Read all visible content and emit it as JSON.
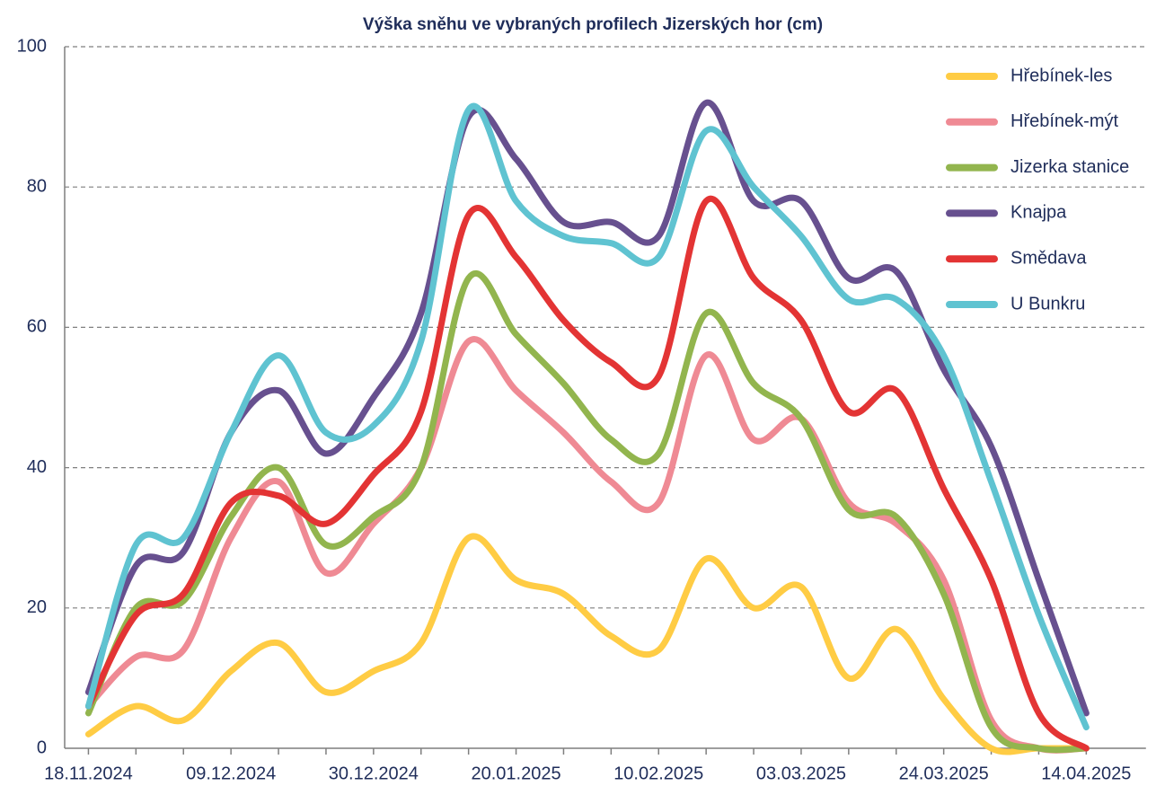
{
  "chart_data": {
    "type": "line",
    "title": "Výška sněhu ve vybraných profilech Jizerských hor (cm)",
    "categories": [
      "18.11.2024",
      null,
      null,
      "09.12.2024",
      null,
      null,
      "30.12.2024",
      null,
      null,
      "20.01.2025",
      null,
      null,
      "10.02.2025",
      null,
      null,
      "03.03.2025",
      null,
      null,
      "24.03.2025",
      null,
      null,
      "14.04.2025"
    ],
    "series": [
      {
        "name": "Hřebínek-les",
        "color": "#ffcc44",
        "values": [
          2,
          6,
          4,
          11,
          15,
          8,
          11,
          15,
          30,
          24,
          22,
          16,
          14,
          27,
          20,
          23,
          10,
          17,
          7,
          0,
          0,
          0
        ]
      },
      {
        "name": "Hřebínek-mýt",
        "color": "#ef8a94",
        "values": [
          6,
          13,
          14,
          30,
          38,
          25,
          32,
          40,
          58,
          51,
          45,
          38,
          35,
          56,
          44,
          47,
          35,
          32,
          24,
          4,
          0,
          0
        ]
      },
      {
        "name": "Jizerka stanice",
        "color": "#92b54e",
        "values": [
          5,
          20,
          21,
          33,
          40,
          29,
          33,
          40,
          67,
          59,
          52,
          44,
          42,
          62,
          52,
          47,
          34,
          33,
          22,
          3,
          0,
          0
        ]
      },
      {
        "name": "Knajpa",
        "color": "#67508f",
        "values": [
          8,
          26,
          28,
          45,
          51,
          42,
          50,
          62,
          90,
          84,
          75,
          75,
          73,
          92,
          78,
          78,
          67,
          68,
          54,
          43,
          24,
          5
        ]
      },
      {
        "name": "Smědava",
        "color": "#e33434",
        "values": [
          6,
          19,
          22,
          35,
          36,
          32,
          39,
          48,
          76,
          70,
          61,
          55,
          53,
          78,
          67,
          61,
          48,
          51,
          37,
          24,
          5,
          0
        ]
      },
      {
        "name": "U Bunkru",
        "color": "#5fc3d1",
        "values": [
          6,
          29,
          30,
          45,
          56,
          45,
          46,
          58,
          91,
          78,
          73,
          72,
          70,
          88,
          80,
          73,
          64,
          64,
          56,
          38,
          19,
          3
        ]
      }
    ],
    "ylim": [
      0,
      100
    ],
    "yticks": [
      0,
      20,
      40,
      60,
      80,
      100
    ],
    "grid": true,
    "legend": "upper right"
  }
}
